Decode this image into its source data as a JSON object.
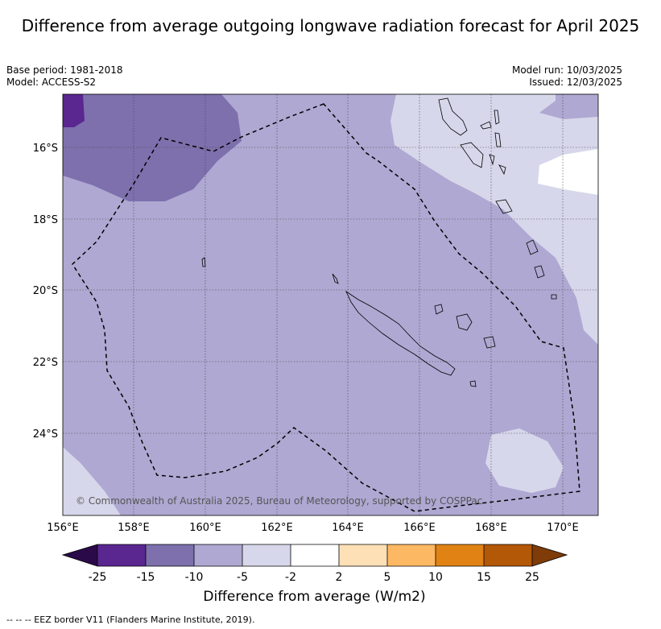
{
  "title": "Difference from average outgoing longwave radiation forecast for April 2025",
  "meta": {
    "base_period": "Base period: 1981-2018",
    "model": "Model: ACCESS-S2",
    "model_run": "Model run: 10/03/2025",
    "issued": "Issued: 12/03/2025"
  },
  "copyright": "© Commonwealth of Australia 2025, Bureau of Meteorology, supported by COSPPac",
  "lon_ticks": [
    "156°E",
    "158°E",
    "160°E",
    "162°E",
    "164°E",
    "166°E",
    "168°E",
    "170°E"
  ],
  "lat_ticks": [
    "16°S",
    "18°S",
    "20°S",
    "22°S",
    "24°S"
  ],
  "colorbar": {
    "title": "Difference from average (W/m2)",
    "labels": [
      "-25",
      "-15",
      "-10",
      "-5",
      "-2",
      "2",
      "5",
      "10",
      "15",
      "25"
    ],
    "colors": {
      "below": "#2b0a4a",
      "b1": "#5a2690",
      "b2": "#7d70ad",
      "b3": "#afa8d2",
      "b4": "#d7d7eb",
      "b5": "#ffffff",
      "b6": "#fde0b6",
      "b7": "#fdb863",
      "b8": "#e08214",
      "b9": "#b35806",
      "above": "#7f3b08"
    }
  },
  "legend_footer": "-- -- -- EEZ border V11 (Flanders Marine Institute, 2019)."
}
